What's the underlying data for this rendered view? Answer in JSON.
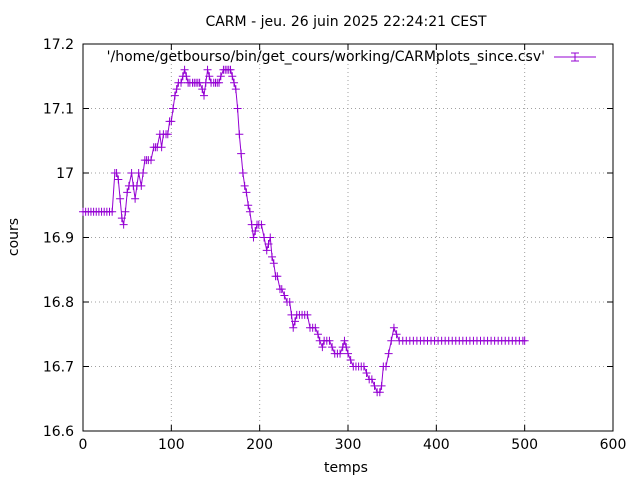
{
  "chart_data": {
    "type": "line",
    "title": "CARM - jeu. 26 juin 2025 22:24:21 CEST",
    "xlabel": "temps",
    "ylabel": "cours",
    "xlim": [
      0,
      600
    ],
    "ylim": [
      16.6,
      17.2
    ],
    "xticks": [
      0,
      100,
      200,
      300,
      400,
      500,
      600
    ],
    "yticks": [
      16.6,
      16.7,
      16.8,
      16.9,
      17.0,
      17.1,
      17.2
    ],
    "xtick_labels": [
      "0",
      "100",
      "200",
      "300",
      "400",
      "500",
      "600"
    ],
    "ytick_labels": [
      "16.6",
      "16.7",
      "16.8",
      "16.9",
      "17",
      "17.1",
      "17.2"
    ],
    "grid": true,
    "legend_position": "top-right",
    "series_color": "#9400d3",
    "series": [
      {
        "name": "'/home/getbourso/bin/get_cours/working/CARMplots_since.csv'",
        "points": [
          [
            0,
            16.94
          ],
          [
            3,
            16.94
          ],
          [
            6,
            16.94
          ],
          [
            9,
            16.94
          ],
          [
            12,
            16.94
          ],
          [
            15,
            16.94
          ],
          [
            18,
            16.94
          ],
          [
            21,
            16.94
          ],
          [
            24,
            16.94
          ],
          [
            27,
            16.94
          ],
          [
            30,
            16.94
          ],
          [
            33,
            16.94
          ],
          [
            36,
            17.0
          ],
          [
            38,
            17.0
          ],
          [
            40,
            16.99
          ],
          [
            42,
            16.96
          ],
          [
            44,
            16.93
          ],
          [
            46,
            16.92
          ],
          [
            48,
            16.94
          ],
          [
            50,
            16.97
          ],
          [
            52,
            16.98
          ],
          [
            55,
            17.0
          ],
          [
            57,
            16.98
          ],
          [
            59,
            16.96
          ],
          [
            61,
            16.98
          ],
          [
            63,
            17.0
          ],
          [
            66,
            16.98
          ],
          [
            68,
            17.0
          ],
          [
            70,
            17.02
          ],
          [
            72,
            17.02
          ],
          [
            74,
            17.02
          ],
          [
            77,
            17.02
          ],
          [
            80,
            17.04
          ],
          [
            82,
            17.04
          ],
          [
            84,
            17.04
          ],
          [
            87,
            17.06
          ],
          [
            89,
            17.04
          ],
          [
            91,
            17.06
          ],
          [
            94,
            17.06
          ],
          [
            96,
            17.06
          ],
          [
            98,
            17.08
          ],
          [
            100,
            17.08
          ],
          [
            102,
            17.1
          ],
          [
            104,
            17.12
          ],
          [
            106,
            17.13
          ],
          [
            108,
            17.14
          ],
          [
            111,
            17.14
          ],
          [
            113,
            17.15
          ],
          [
            115,
            17.16
          ],
          [
            117,
            17.15
          ],
          [
            119,
            17.14
          ],
          [
            121,
            17.14
          ],
          [
            124,
            17.14
          ],
          [
            126,
            17.14
          ],
          [
            128,
            17.14
          ],
          [
            130,
            17.14
          ],
          [
            132,
            17.14
          ],
          [
            135,
            17.13
          ],
          [
            137,
            17.12
          ],
          [
            139,
            17.14
          ],
          [
            141,
            17.16
          ],
          [
            143,
            17.15
          ],
          [
            145,
            17.14
          ],
          [
            148,
            17.14
          ],
          [
            150,
            17.14
          ],
          [
            152,
            17.14
          ],
          [
            154,
            17.14
          ],
          [
            156,
            17.15
          ],
          [
            159,
            17.16
          ],
          [
            161,
            17.16
          ],
          [
            163,
            17.16
          ],
          [
            165,
            17.16
          ],
          [
            167,
            17.16
          ],
          [
            169,
            17.15
          ],
          [
            171,
            17.14
          ],
          [
            173,
            17.13
          ],
          [
            175,
            17.1
          ],
          [
            177,
            17.06
          ],
          [
            179,
            17.03
          ],
          [
            181,
            17.0
          ],
          [
            183,
            16.98
          ],
          [
            185,
            16.97
          ],
          [
            187,
            16.95
          ],
          [
            189,
            16.94
          ],
          [
            191,
            16.92
          ],
          [
            193,
            16.9
          ],
          [
            195,
            16.91
          ],
          [
            197,
            16.92
          ],
          [
            199,
            16.92
          ],
          [
            202,
            16.92
          ],
          [
            205,
            16.9
          ],
          [
            208,
            16.88
          ],
          [
            210,
            16.89
          ],
          [
            212,
            16.9
          ],
          [
            214,
            16.87
          ],
          [
            216,
            16.86
          ],
          [
            218,
            16.84
          ],
          [
            220,
            16.84
          ],
          [
            223,
            16.82
          ],
          [
            225,
            16.82
          ],
          [
            228,
            16.81
          ],
          [
            231,
            16.8
          ],
          [
            234,
            16.8
          ],
          [
            236,
            16.78
          ],
          [
            238,
            16.76
          ],
          [
            240,
            16.77
          ],
          [
            242,
            16.78
          ],
          [
            245,
            16.78
          ],
          [
            248,
            16.78
          ],
          [
            251,
            16.78
          ],
          [
            254,
            16.78
          ],
          [
            257,
            16.76
          ],
          [
            260,
            16.76
          ],
          [
            263,
            16.76
          ],
          [
            266,
            16.75
          ],
          [
            268,
            16.74
          ],
          [
            271,
            16.73
          ],
          [
            273,
            16.74
          ],
          [
            276,
            16.74
          ],
          [
            279,
            16.74
          ],
          [
            282,
            16.73
          ],
          [
            285,
            16.72
          ],
          [
            288,
            16.72
          ],
          [
            291,
            16.72
          ],
          [
            294,
            16.73
          ],
          [
            296,
            16.74
          ],
          [
            298,
            16.73
          ],
          [
            300,
            16.72
          ],
          [
            303,
            16.71
          ],
          [
            306,
            16.7
          ],
          [
            309,
            16.7
          ],
          [
            312,
            16.7
          ],
          [
            315,
            16.7
          ],
          [
            318,
            16.7
          ],
          [
            321,
            16.69
          ],
          [
            324,
            16.68
          ],
          [
            327,
            16.68
          ],
          [
            330,
            16.67
          ],
          [
            333,
            16.66
          ],
          [
            336,
            16.66
          ],
          [
            338,
            16.67
          ],
          [
            340,
            16.7
          ],
          [
            343,
            16.7
          ],
          [
            346,
            16.72
          ],
          [
            349,
            16.74
          ],
          [
            352,
            16.76
          ],
          [
            355,
            16.75
          ],
          [
            358,
            16.74
          ],
          [
            362,
            16.74
          ],
          [
            366,
            16.74
          ],
          [
            370,
            16.74
          ],
          [
            374,
            16.74
          ],
          [
            378,
            16.74
          ],
          [
            382,
            16.74
          ],
          [
            386,
            16.74
          ],
          [
            390,
            16.74
          ],
          [
            394,
            16.74
          ],
          [
            398,
            16.74
          ],
          [
            402,
            16.74
          ],
          [
            406,
            16.74
          ],
          [
            410,
            16.74
          ],
          [
            414,
            16.74
          ],
          [
            418,
            16.74
          ],
          [
            422,
            16.74
          ],
          [
            426,
            16.74
          ],
          [
            430,
            16.74
          ],
          [
            434,
            16.74
          ],
          [
            438,
            16.74
          ],
          [
            442,
            16.74
          ],
          [
            446,
            16.74
          ],
          [
            450,
            16.74
          ],
          [
            454,
            16.74
          ],
          [
            458,
            16.74
          ],
          [
            462,
            16.74
          ],
          [
            466,
            16.74
          ],
          [
            470,
            16.74
          ],
          [
            474,
            16.74
          ],
          [
            478,
            16.74
          ],
          [
            482,
            16.74
          ],
          [
            486,
            16.74
          ],
          [
            490,
            16.74
          ],
          [
            494,
            16.74
          ],
          [
            498,
            16.74
          ],
          [
            500,
            16.74
          ]
        ]
      }
    ]
  }
}
